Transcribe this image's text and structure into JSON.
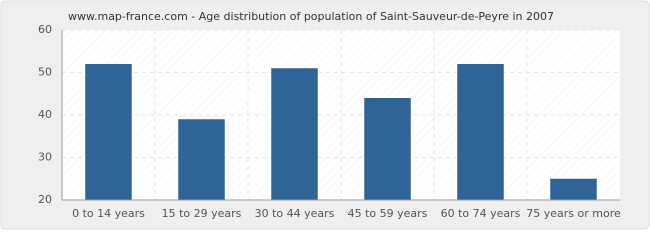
{
  "chart_data": {
    "type": "bar",
    "title": "www.map-france.com - Age distribution of population of Saint-Sauveur-de-Peyre in 2007",
    "categories": [
      "0 to 14 years",
      "15 to 29 years",
      "30 to 44 years",
      "45 to 59 years",
      "60 to 74 years",
      "75 years or more"
    ],
    "values": [
      52,
      39,
      51,
      44,
      52,
      25
    ],
    "color": "#2e6497",
    "ylim": [
      20,
      60
    ],
    "yticks": [
      20,
      30,
      40,
      50,
      60
    ],
    "grid": true
  }
}
